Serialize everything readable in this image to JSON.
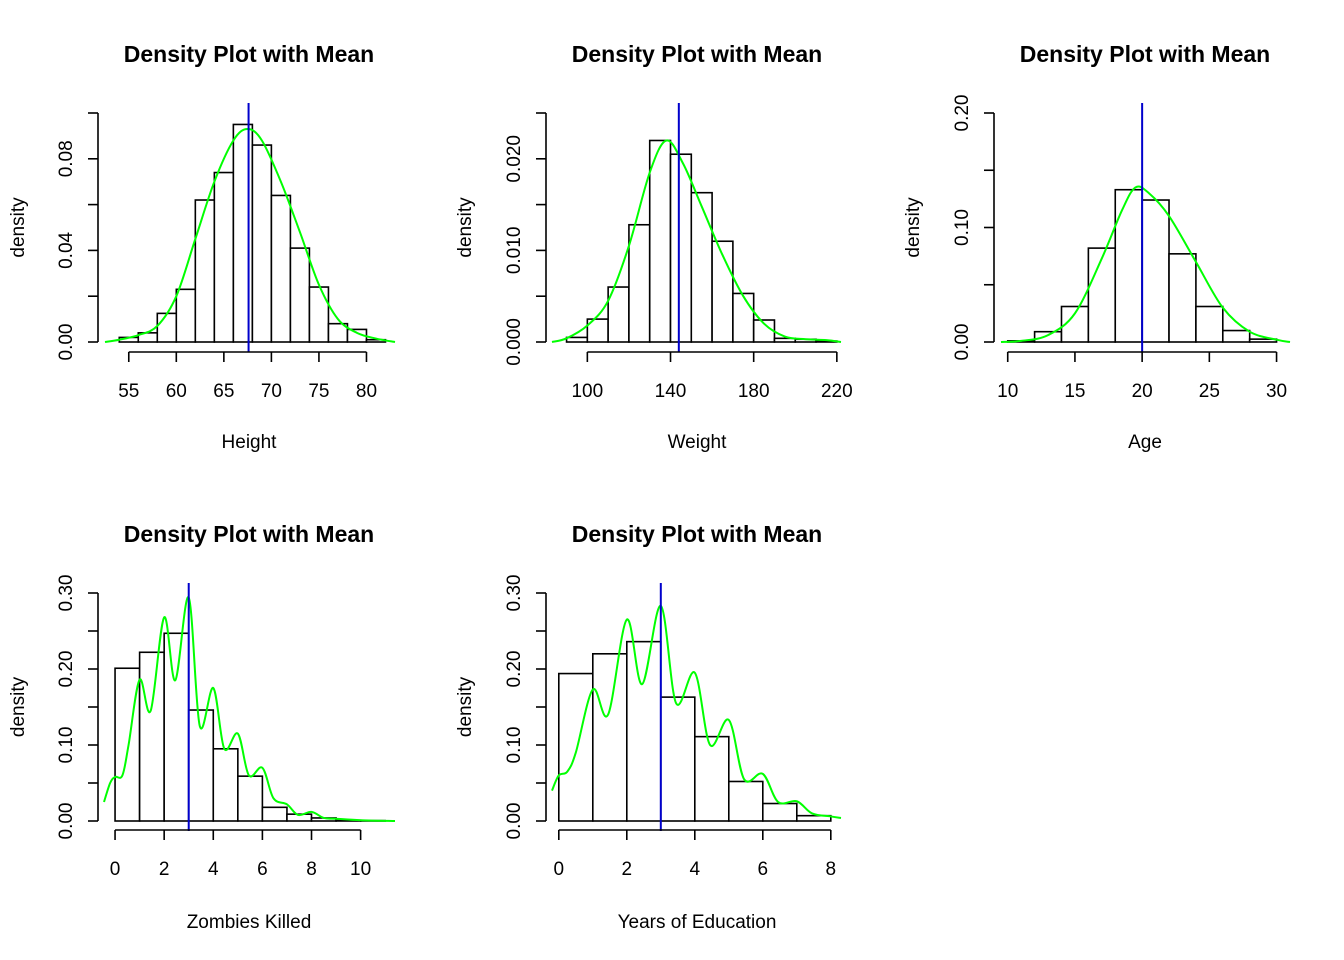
{
  "colors": {
    "bar_fill": "#ffffff",
    "bar_stroke": "#000000",
    "density": "#00ff00",
    "mean_line": "#0000cc"
  },
  "chart_data": [
    {
      "type": "histogram",
      "title": "Density Plot with Mean",
      "xlabel": "Height",
      "ylabel": "density",
      "xlim": [
        52.5,
        83
      ],
      "ylim": [
        0,
        0.1
      ],
      "xticks": [
        55,
        60,
        65,
        70,
        75,
        80
      ],
      "yticks": [
        0,
        0.02,
        0.04,
        0.06,
        0.08,
        0.1
      ],
      "ytick_labels": [
        "0.00",
        "",
        "0.04",
        "",
        "0.08",
        ""
      ],
      "bins": [
        [
          54,
          56,
          0.002
        ],
        [
          56,
          58,
          0.004
        ],
        [
          58,
          60,
          0.0125
        ],
        [
          60,
          62,
          0.023
        ],
        [
          62,
          64,
          0.062
        ],
        [
          64,
          66,
          0.074
        ],
        [
          66,
          68,
          0.095
        ],
        [
          68,
          70,
          0.086
        ],
        [
          70,
          72,
          0.064
        ],
        [
          72,
          74,
          0.041
        ],
        [
          74,
          76,
          0.024
        ],
        [
          76,
          78,
          0.008
        ],
        [
          78,
          80,
          0.0055
        ],
        [
          80,
          82,
          0.001
        ]
      ],
      "density": [
        [
          52.5,
          0
        ],
        [
          54,
          0.001
        ],
        [
          56,
          0.003
        ],
        [
          58,
          0.007
        ],
        [
          60,
          0.02
        ],
        [
          62,
          0.045
        ],
        [
          64,
          0.07
        ],
        [
          66,
          0.088
        ],
        [
          67.5,
          0.093
        ],
        [
          69,
          0.088
        ],
        [
          71,
          0.07
        ],
        [
          73,
          0.048
        ],
        [
          75,
          0.025
        ],
        [
          77,
          0.01
        ],
        [
          79,
          0.004
        ],
        [
          81,
          0.0015
        ],
        [
          83,
          0
        ]
      ],
      "mean": 67.6
    },
    {
      "type": "histogram",
      "title": "Density Plot with Mean",
      "xlabel": "Weight",
      "ylabel": "density",
      "xlim": [
        83,
        222
      ],
      "ylim": [
        0,
        0.025
      ],
      "xticks": [
        100,
        140,
        180,
        220
      ],
      "yticks": [
        0,
        0.005,
        0.01,
        0.015,
        0.02,
        0.025
      ],
      "ytick_labels": [
        "0.000",
        "",
        "0.010",
        "",
        "0.020",
        ""
      ],
      "bins": [
        [
          90,
          100,
          0.0005
        ],
        [
          100,
          110,
          0.0025
        ],
        [
          110,
          120,
          0.006
        ],
        [
          120,
          130,
          0.0128
        ],
        [
          130,
          140,
          0.022
        ],
        [
          140,
          150,
          0.0205
        ],
        [
          150,
          160,
          0.0163
        ],
        [
          160,
          170,
          0.011
        ],
        [
          170,
          180,
          0.0053
        ],
        [
          180,
          190,
          0.0024
        ],
        [
          190,
          200,
          0.0004
        ],
        [
          200,
          210,
          0.0003
        ],
        [
          210,
          220,
          0.0001
        ]
      ],
      "density": [
        [
          83,
          0
        ],
        [
          90,
          0.0004
        ],
        [
          100,
          0.0018
        ],
        [
          110,
          0.0045
        ],
        [
          120,
          0.0105
        ],
        [
          130,
          0.0185
        ],
        [
          138,
          0.022
        ],
        [
          146,
          0.0195
        ],
        [
          155,
          0.0148
        ],
        [
          165,
          0.0095
        ],
        [
          175,
          0.005
        ],
        [
          185,
          0.002
        ],
        [
          195,
          0.0006
        ],
        [
          205,
          0.0003
        ],
        [
          215,
          0.0002
        ],
        [
          222,
          0
        ]
      ],
      "mean": 144
    },
    {
      "type": "histogram",
      "title": "Density Plot with Mean",
      "xlabel": "Age",
      "ylabel": "density",
      "xlim": [
        9.5,
        31
      ],
      "ylim": [
        0,
        0.2
      ],
      "xticks": [
        10,
        15,
        20,
        25,
        30
      ],
      "yticks": [
        0,
        0.05,
        0.1,
        0.15,
        0.2
      ],
      "ytick_labels": [
        "0.00",
        "",
        "0.10",
        "",
        "0.20"
      ],
      "bins": [
        [
          10,
          12,
          0.001
        ],
        [
          12,
          14,
          0.009
        ],
        [
          14,
          16,
          0.031
        ],
        [
          16,
          18,
          0.082
        ],
        [
          18,
          20,
          0.133
        ],
        [
          20,
          22,
          0.124
        ],
        [
          22,
          24,
          0.077
        ],
        [
          24,
          26,
          0.031
        ],
        [
          26,
          28,
          0.01
        ],
        [
          28,
          30,
          0.0025
        ]
      ],
      "density": [
        [
          9.5,
          0
        ],
        [
          11,
          0.001
        ],
        [
          13,
          0.006
        ],
        [
          15,
          0.025
        ],
        [
          17,
          0.073
        ],
        [
          18.5,
          0.115
        ],
        [
          19.5,
          0.135
        ],
        [
          20.5,
          0.13
        ],
        [
          22,
          0.11
        ],
        [
          24,
          0.07
        ],
        [
          26,
          0.03
        ],
        [
          28,
          0.009
        ],
        [
          30,
          0.002
        ],
        [
          31,
          0
        ]
      ],
      "mean": 20
    },
    {
      "type": "histogram",
      "title": "Density Plot with Mean",
      "xlabel": "Zombies Killed",
      "ylabel": "density",
      "xlim": [
        -0.45,
        11.4
      ],
      "ylim": [
        0,
        0.3
      ],
      "xticks": [
        0,
        2,
        4,
        6,
        8,
        10
      ],
      "yticks": [
        0,
        0.05,
        0.1,
        0.15,
        0.2,
        0.25,
        0.3
      ],
      "ytick_labels": [
        "0.00",
        "",
        "0.10",
        "",
        "0.20",
        "",
        "0.30"
      ],
      "bins": [
        [
          0,
          1,
          0.201
        ],
        [
          1,
          2,
          0.222
        ],
        [
          2,
          3,
          0.247
        ],
        [
          3,
          4,
          0.146
        ],
        [
          4,
          5,
          0.095
        ],
        [
          5,
          6,
          0.059
        ],
        [
          6,
          7,
          0.018
        ],
        [
          7,
          8,
          0.009
        ],
        [
          8,
          9,
          0.004
        ],
        [
          9,
          10,
          0.001
        ],
        [
          10,
          11,
          0.0005
        ]
      ],
      "density": [
        [
          -0.45,
          0.025
        ],
        [
          -0.2,
          0.05
        ],
        [
          0,
          0.058
        ],
        [
          0.3,
          0.06
        ],
        [
          0.55,
          0.1
        ],
        [
          1,
          0.186
        ],
        [
          1.45,
          0.145
        ],
        [
          2,
          0.268
        ],
        [
          2.45,
          0.185
        ],
        [
          3,
          0.294
        ],
        [
          3.45,
          0.125
        ],
        [
          4,
          0.175
        ],
        [
          4.45,
          0.095
        ],
        [
          5,
          0.115
        ],
        [
          5.45,
          0.06
        ],
        [
          6,
          0.07
        ],
        [
          6.45,
          0.03
        ],
        [
          7,
          0.022
        ],
        [
          7.45,
          0.008
        ],
        [
          8,
          0.012
        ],
        [
          8.5,
          0.004
        ],
        [
          9,
          0.003
        ],
        [
          10,
          0.001
        ],
        [
          11.4,
          0
        ]
      ],
      "mean": 3
    },
    {
      "type": "histogram",
      "title": "Density Plot with Mean",
      "xlabel": "Years of Education",
      "ylabel": "density",
      "xlim": [
        -0.2,
        8.3
      ],
      "ylim": [
        0,
        0.3
      ],
      "xticks": [
        0,
        2,
        4,
        6,
        8
      ],
      "yticks": [
        0,
        0.05,
        0.1,
        0.15,
        0.2,
        0.25,
        0.3
      ],
      "ytick_labels": [
        "0.00",
        "",
        "0.10",
        "",
        "0.20",
        "",
        "0.30"
      ],
      "bins": [
        [
          0,
          1,
          0.194
        ],
        [
          1,
          2,
          0.22
        ],
        [
          2,
          3,
          0.236
        ],
        [
          3,
          4,
          0.163
        ],
        [
          4,
          5,
          0.111
        ],
        [
          5,
          6,
          0.052
        ],
        [
          6,
          7,
          0.023
        ],
        [
          7,
          8,
          0.007
        ]
      ],
      "density": [
        [
          -0.2,
          0.04
        ],
        [
          0,
          0.06
        ],
        [
          0.25,
          0.065
        ],
        [
          0.5,
          0.09
        ],
        [
          1,
          0.173
        ],
        [
          1.45,
          0.14
        ],
        [
          2,
          0.265
        ],
        [
          2.45,
          0.18
        ],
        [
          3,
          0.283
        ],
        [
          3.45,
          0.155
        ],
        [
          4,
          0.195
        ],
        [
          4.45,
          0.1
        ],
        [
          5,
          0.133
        ],
        [
          5.45,
          0.055
        ],
        [
          6,
          0.062
        ],
        [
          6.45,
          0.025
        ],
        [
          7,
          0.026
        ],
        [
          7.45,
          0.01
        ],
        [
          8,
          0.006
        ],
        [
          8.3,
          0.004
        ]
      ],
      "mean": 3
    }
  ]
}
